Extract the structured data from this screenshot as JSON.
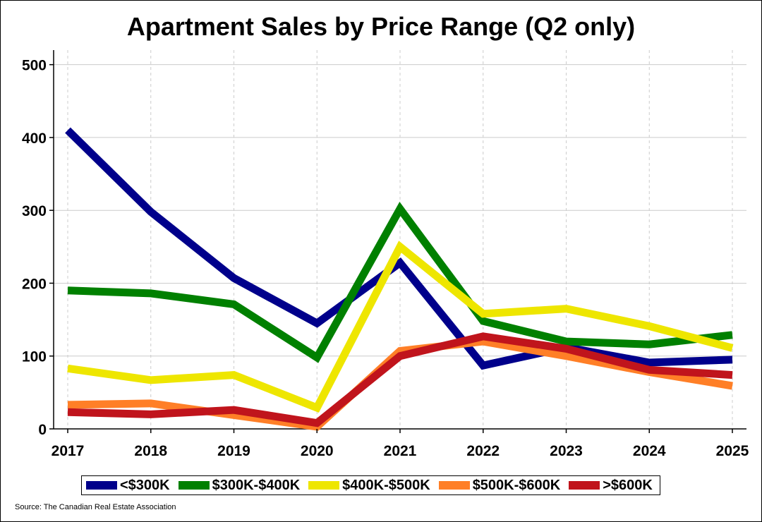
{
  "chart_data": {
    "type": "line",
    "title": "Apartment Sales by Price Range (Q2 only)",
    "xlabel": "",
    "ylabel": "",
    "x": [
      "2017",
      "2018",
      "2019",
      "2020",
      "2021",
      "2022",
      "2023",
      "2024",
      "2025"
    ],
    "ylim": [
      0,
      520
    ],
    "yticks": [
      0,
      100,
      200,
      300,
      400,
      500
    ],
    "grid": true,
    "legend_position": "bottom",
    "series": [
      {
        "name": "<$300K",
        "color": "#00008B",
        "values": [
          410,
          298,
          207,
          145,
          228,
          87,
          112,
          91,
          95
        ]
      },
      {
        "name": "$300K-$400K",
        "color": "#008000",
        "values": [
          190,
          186,
          171,
          98,
          302,
          148,
          120,
          116,
          129
        ]
      },
      {
        "name": "$400K-$500K",
        "color": "#EEE600",
        "values": [
          83,
          67,
          74,
          29,
          250,
          158,
          165,
          141,
          111
        ]
      },
      {
        "name": "$500K-$600K",
        "color": "#FF7F27",
        "values": [
          33,
          35,
          19,
          3,
          107,
          120,
          100,
          78,
          59
        ]
      },
      {
        "name": ">$600K",
        "color": "#C0141C",
        "values": [
          23,
          20,
          26,
          8,
          100,
          127,
          110,
          81,
          74
        ]
      }
    ],
    "source": "Source: The Canadian Real Estate Association"
  }
}
